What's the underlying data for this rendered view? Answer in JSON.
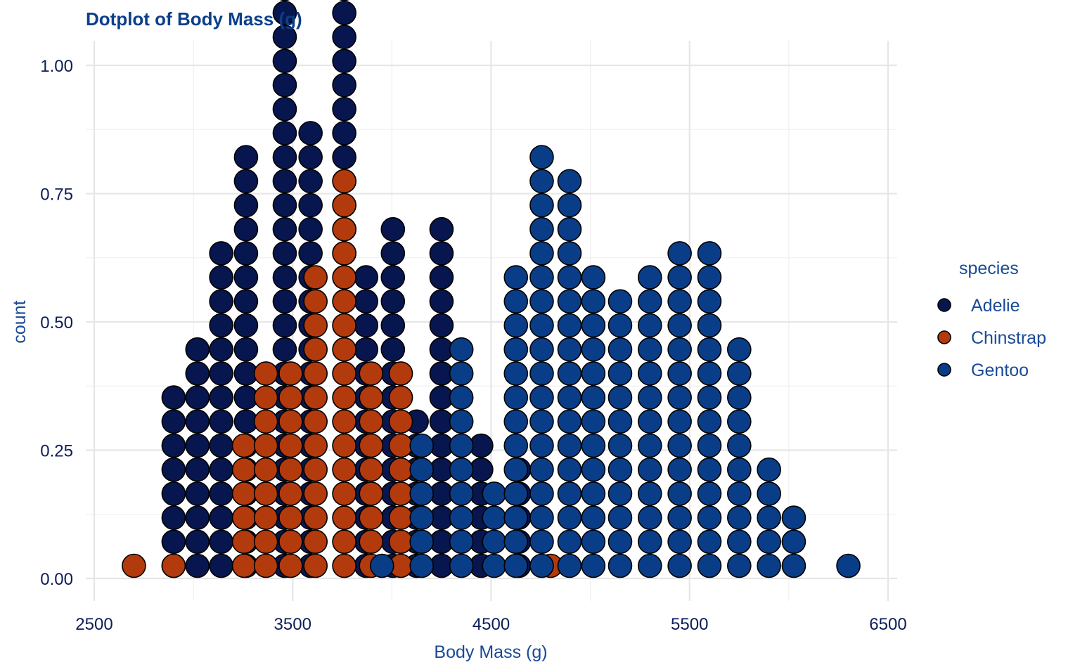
{
  "chart_data": {
    "type": "dotplot",
    "title": "Dotplot of Body Mass (g)",
    "xlabel": "Body Mass (g)",
    "ylabel": "count",
    "xlim": [
      2500,
      6500
    ],
    "ylim": [
      0,
      1
    ],
    "x_ticks": [
      2500,
      3500,
      4500,
      5500,
      6500
    ],
    "y_ticks": [
      0,
      0.25,
      0.5,
      0.75,
      1
    ],
    "y_tick_labels": [
      "0.00",
      "0.25",
      "0.50",
      "0.75",
      "1.00"
    ],
    "grid": true,
    "legend": {
      "title": "species",
      "placement": "right"
    },
    "series": [
      {
        "name": "Adelie",
        "color": "#08164f",
        "stacks": [
          {
            "x": 2900,
            "count": 8
          },
          {
            "x": 3020,
            "count": 10
          },
          {
            "x": 3140,
            "count": 14
          },
          {
            "x": 3265,
            "count": 18
          },
          {
            "x": 3460,
            "count": 26
          },
          {
            "x": 3590,
            "count": 19
          },
          {
            "x": 3760,
            "count": 29
          },
          {
            "x": 3870,
            "count": 13
          },
          {
            "x": 4005,
            "count": 15
          },
          {
            "x": 4125,
            "count": 7
          },
          {
            "x": 4250,
            "count": 15
          },
          {
            "x": 4450,
            "count": 6
          },
          {
            "x": 4640,
            "count": 5
          }
        ]
      },
      {
        "name": "Chinstrap",
        "color": "#b33a0c",
        "stacks": [
          {
            "x": 2700,
            "count": 1
          },
          {
            "x": 2900,
            "count": 1
          },
          {
            "x": 3255,
            "count": 6
          },
          {
            "x": 3365,
            "count": 9
          },
          {
            "x": 3490,
            "count": 9
          },
          {
            "x": 3615,
            "count": 13
          },
          {
            "x": 3760,
            "count": 17
          },
          {
            "x": 3895,
            "count": 9
          },
          {
            "x": 4045,
            "count": 9
          },
          {
            "x": 4800,
            "count": 1
          }
        ]
      },
      {
        "name": "Gentoo",
        "color": "#0a3d87",
        "stacks": [
          {
            "x": 3950,
            "count": 1
          },
          {
            "x": 4150,
            "count": 6
          },
          {
            "x": 4350,
            "count": 10
          },
          {
            "x": 4515,
            "count": 4
          },
          {
            "x": 4625,
            "count": 13
          },
          {
            "x": 4755,
            "count": 18
          },
          {
            "x": 4895,
            "count": 17
          },
          {
            "x": 5015,
            "count": 13
          },
          {
            "x": 5150,
            "count": 12
          },
          {
            "x": 5300,
            "count": 13
          },
          {
            "x": 5450,
            "count": 14
          },
          {
            "x": 5600,
            "count": 14
          },
          {
            "x": 5750,
            "count": 10
          },
          {
            "x": 5900,
            "count": 5
          },
          {
            "x": 6025,
            "count": 3
          },
          {
            "x": 6300,
            "count": 1
          }
        ]
      }
    ]
  }
}
